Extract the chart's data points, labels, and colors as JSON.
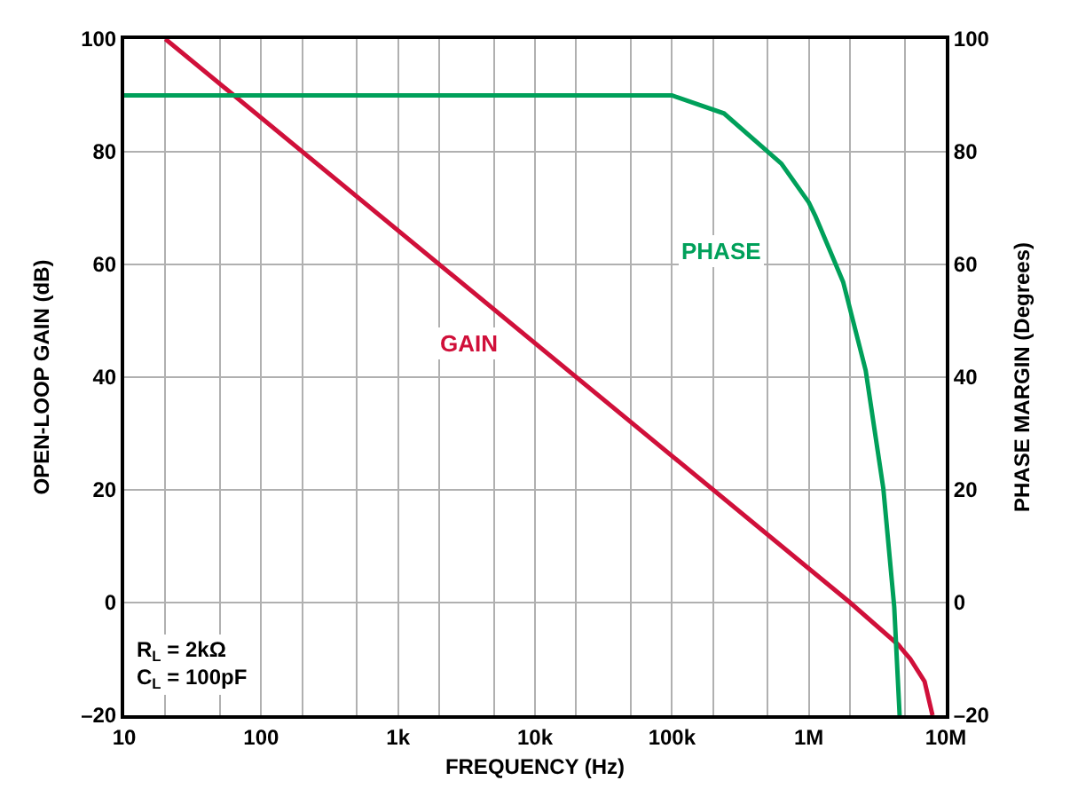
{
  "chart_data": {
    "type": "line",
    "xlabel": "FREQUENCY (Hz)",
    "ylabel": "OPEN-LOOP GAIN (dB)",
    "y2label": "PHASE MARGIN (Degrees)",
    "series": [
      {
        "name": "GAIN",
        "color": "#d0103a",
        "x": [
          20,
          2000000,
          4500000,
          5500000,
          7000000,
          8000000
        ],
        "values": [
          100,
          0,
          -7.5,
          -10,
          -14,
          -20
        ]
      },
      {
        "name": "PHASE",
        "color": "#00a05a",
        "axis": "y2",
        "x": [
          10,
          100000,
          240000,
          630000,
          1000000,
          1120000,
          1780000,
          2600000,
          3500000,
          4200000,
          4600000
        ],
        "values": [
          90,
          90,
          86.8,
          77.9,
          71,
          68.5,
          56.9,
          41.2,
          20.2,
          -0.7,
          -20
        ]
      }
    ],
    "annotations": [
      "R$_{L}$ = 2kΩ",
      "C$_{L}$ = 100pF"
    ],
    "xlim": [
      10,
      10000000
    ],
    "xticks": [
      {
        "value": 10,
        "label": "10"
      },
      {
        "value": 100,
        "label": "100"
      },
      {
        "value": 1000,
        "label": "1k"
      },
      {
        "value": 10000,
        "label": "10k"
      },
      {
        "value": 100000,
        "label": "100k"
      },
      {
        "value": 1000000,
        "label": "1M"
      },
      {
        "value": 10000000,
        "label": "10M"
      }
    ],
    "ylim": [
      -20,
      100
    ],
    "yticks": [
      {
        "value": -20,
        "label": "–20"
      },
      0,
      20,
      40,
      60,
      80,
      100
    ],
    "y2lim": [
      -20,
      100
    ],
    "y2ticks": [
      {
        "value": -20,
        "label": "–20"
      },
      0,
      20,
      40,
      60,
      80,
      100
    ],
    "log": "x",
    "grid": true,
    "legend": false,
    "marker": "none",
    "line_style": "solid"
  }
}
